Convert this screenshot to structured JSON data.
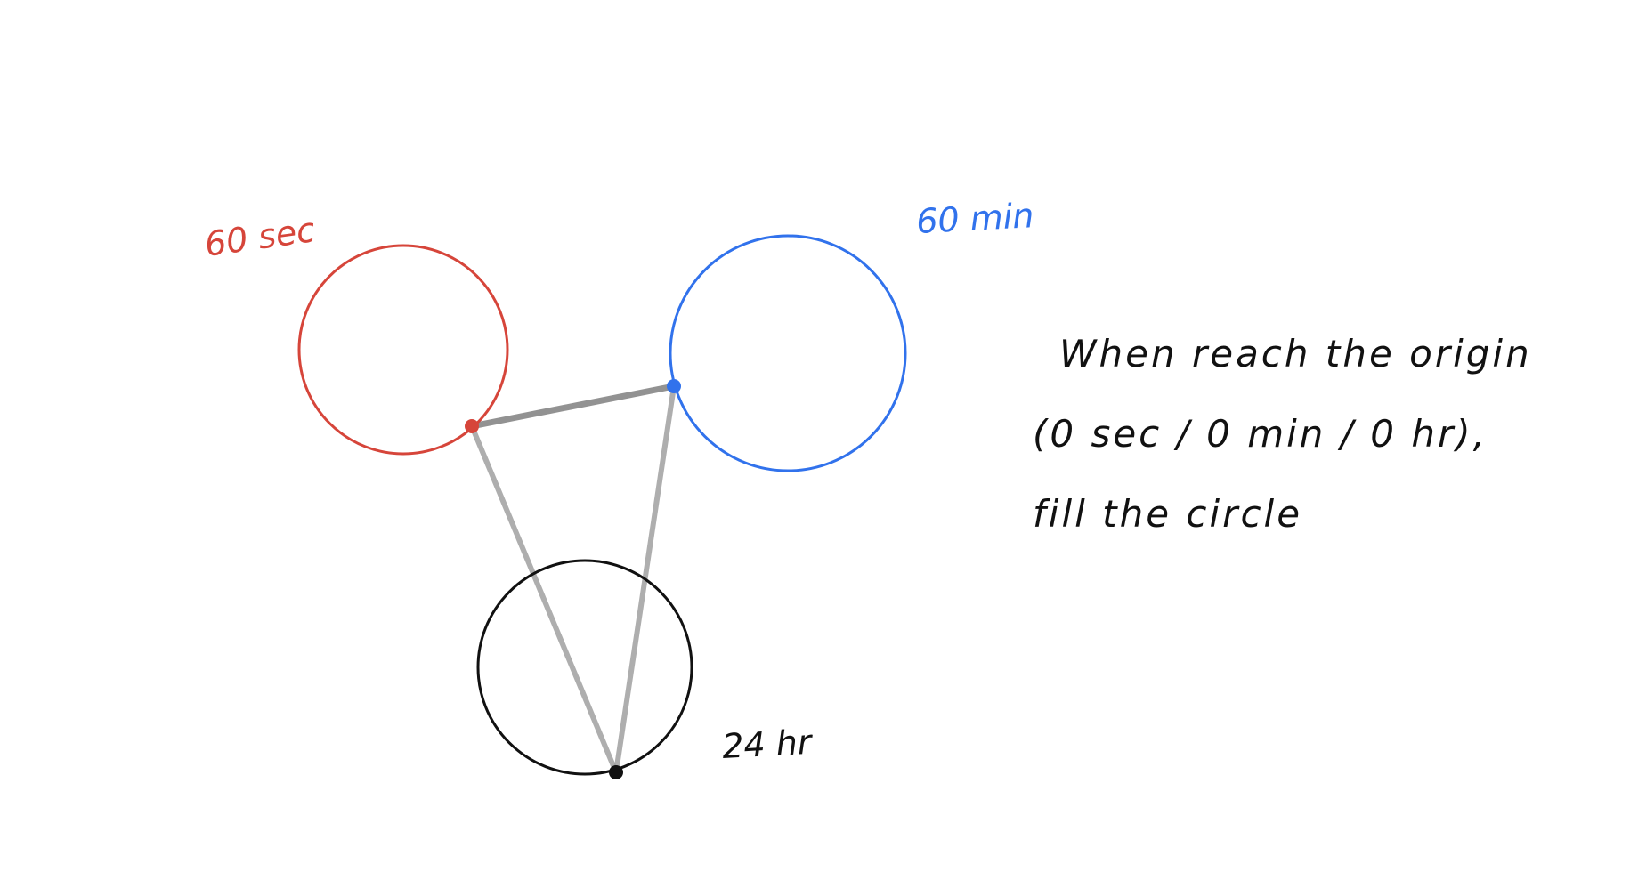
{
  "colors": {
    "seconds": "#d6453a",
    "minutes": "#3172ec",
    "hours": "#111111",
    "connector": "#9a9a9a",
    "background": "#ffffff"
  },
  "labels": {
    "seconds": "60 sec",
    "minutes": "60 min",
    "hours": "24 hr"
  },
  "note": {
    "line1": "When reach the origin",
    "line2": "(0 sec / 0 min / 0 hr),",
    "line3": "fill the circle"
  }
}
